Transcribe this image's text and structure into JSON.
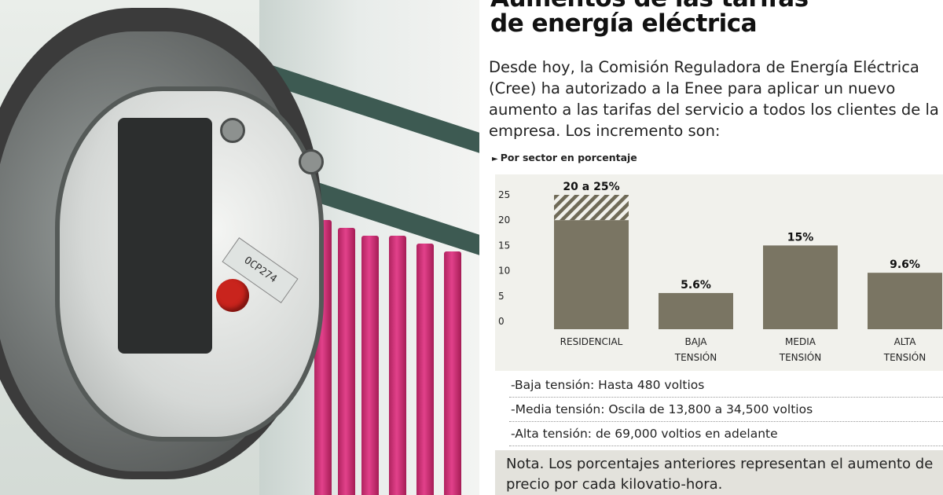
{
  "headline": {
    "line1": "Aumentos de las tarifas",
    "line2": "de energía eléctrica"
  },
  "intro": "Desde hoy, la Comisión Reguladora de Energía Eléctrica (Cree) ha autorizado a la Enee para aplicar un nuevo aumento a las tarifas del servicio a todos los clientes de la empresa. Los incremento son:",
  "chart_subtitle": "Por sector en porcentaje",
  "photo": {
    "meter_tag_text": "OCP274"
  },
  "chart_data": {
    "type": "bar",
    "title": "",
    "xlabel": "",
    "ylabel": "",
    "ylim": [
      0,
      25
    ],
    "yticks": [
      0,
      5,
      10,
      15,
      20,
      25
    ],
    "grid": false,
    "categories": [
      [
        "RESIDENCIAL"
      ],
      [
        "BAJA",
        "TENSIÓN"
      ],
      [
        "MEDIA",
        "TENSIÓN"
      ],
      [
        "ALTA",
        "TENSIÓN"
      ]
    ],
    "values": [
      20,
      5.6,
      15,
      9.6
    ],
    "ranges": [
      {
        "index": 0,
        "from": 20,
        "to": 25,
        "style": "hatched"
      }
    ],
    "data_labels": [
      "20 a 25%",
      "5.6%",
      "15%",
      "9.6%"
    ],
    "bar_color": "#7a7563",
    "background": "#f1f1ec"
  },
  "notes": [
    "-Baja tensión: Hasta 480 voltios",
    "-Media tensión: Oscila de 13,800 a 34,500 voltios",
    "-Alta tensión: de  69,000 voltios en adelante"
  ],
  "footnote": "Nota. Los porcentajes anteriores representan el aumento de precio por cada kilovatio-hora."
}
